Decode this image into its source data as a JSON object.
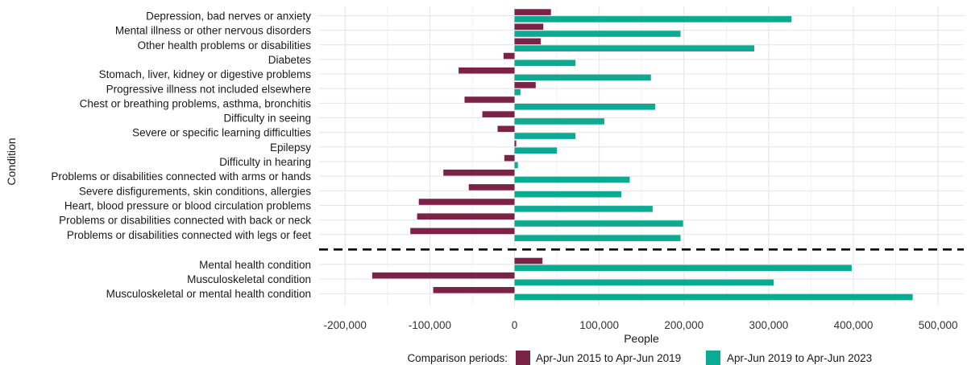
{
  "chart_data": {
    "type": "bar",
    "orientation": "horizontal",
    "xlabel": "People",
    "ylabel": "Condition",
    "xlim": [
      -240000,
      530000
    ],
    "xticks": [
      -200000,
      -100000,
      0,
      100000,
      200000,
      300000,
      400000,
      500000
    ],
    "xtick_labels": [
      "-200,000",
      "-100,000",
      "0",
      "100,000",
      "200,000",
      "300,000",
      "400,000",
      "500,000"
    ],
    "grid": true,
    "legend_position": "bottom",
    "legend_title": "Comparison periods:",
    "categories": [
      "Depression, bad nerves or anxiety",
      "Mental illness or other nervous disorders",
      "Other health problems or disabilities",
      "Diabetes",
      "Stomach, liver, kidney or digestive problems",
      "Progressive illness not included elsewhere",
      "Chest or breathing problems, asthma, bronchitis",
      "Difficulty in seeing",
      "Severe or specific learning difficulties",
      "Epilepsy",
      "Difficulty in hearing",
      "Problems or disabilities connected with arms or hands",
      "Severe disfigurements, skin conditions, allergies",
      "Heart, blood pressure or blood circulation problems",
      "Problems or disabilities connected with back or neck",
      "Problems or disabilities connected with legs or feet",
      "Mental health condition",
      "Musculoskeletal condition",
      "Musculoskeletal or mental health condition"
    ],
    "separator_after_index": 15,
    "series": [
      {
        "name": "Apr-Jun 2015 to Apr-Jun 2019",
        "color": "#7b2346",
        "values": [
          43000,
          34000,
          31000,
          -13000,
          -66000,
          25000,
          -59000,
          -38000,
          -20000,
          2000,
          -12000,
          -84000,
          -54000,
          -113000,
          -115000,
          -123000,
          33000,
          -168000,
          -96000
        ]
      },
      {
        "name": "Apr-Jun 2019 to Apr-Jun 2023",
        "color": "#0bab93",
        "values": [
          327000,
          196000,
          283000,
          72000,
          161000,
          7000,
          166000,
          106000,
          72000,
          50000,
          4000,
          136000,
          126000,
          163000,
          199000,
          196000,
          398000,
          306000,
          470000
        ]
      }
    ]
  }
}
